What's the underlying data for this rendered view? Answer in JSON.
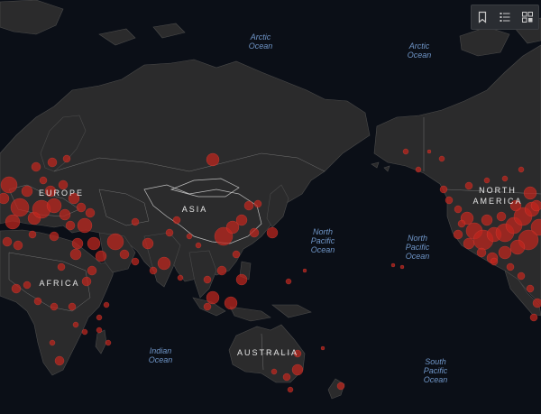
{
  "map": {
    "ocean_labels": [
      {
        "id": "arctic-ocean-west",
        "lines": [
          "Arctic",
          "Ocean"
        ]
      },
      {
        "id": "arctic-ocean-east",
        "lines": [
          "Arctic",
          "Ocean"
        ]
      },
      {
        "id": "north-pacific-ocean-west",
        "lines": [
          "North",
          "Pacific",
          "Ocean"
        ]
      },
      {
        "id": "north-pacific-ocean-east",
        "lines": [
          "North",
          "Pacific",
          "Ocean"
        ]
      },
      {
        "id": "indian-ocean",
        "lines": [
          "Indian",
          "Ocean"
        ]
      },
      {
        "id": "south-pacific-ocean",
        "lines": [
          "South",
          "Pacific",
          "Ocean"
        ]
      }
    ],
    "continent_labels": [
      {
        "id": "europe",
        "lines": [
          "EUROPE"
        ]
      },
      {
        "id": "asia",
        "lines": [
          "ASIA"
        ]
      },
      {
        "id": "africa",
        "lines": [
          "AFRICA"
        ]
      },
      {
        "id": "australia",
        "lines": [
          "AUSTRALIA"
        ]
      },
      {
        "id": "north-america",
        "lines": [
          "NORTH",
          "AMERICA"
        ]
      }
    ],
    "colors": {
      "ocean": "#0b0f17",
      "land": "#2b2b2c",
      "bubble": "#c1261d",
      "label": "#6f95c7"
    }
  },
  "toolbar": {
    "buttons": [
      {
        "id": "bookmark-button",
        "icon": "bookmark-icon"
      },
      {
        "id": "legend-button",
        "icon": "list-icon"
      },
      {
        "id": "basemap-button",
        "icon": "grid-icon"
      }
    ]
  }
}
